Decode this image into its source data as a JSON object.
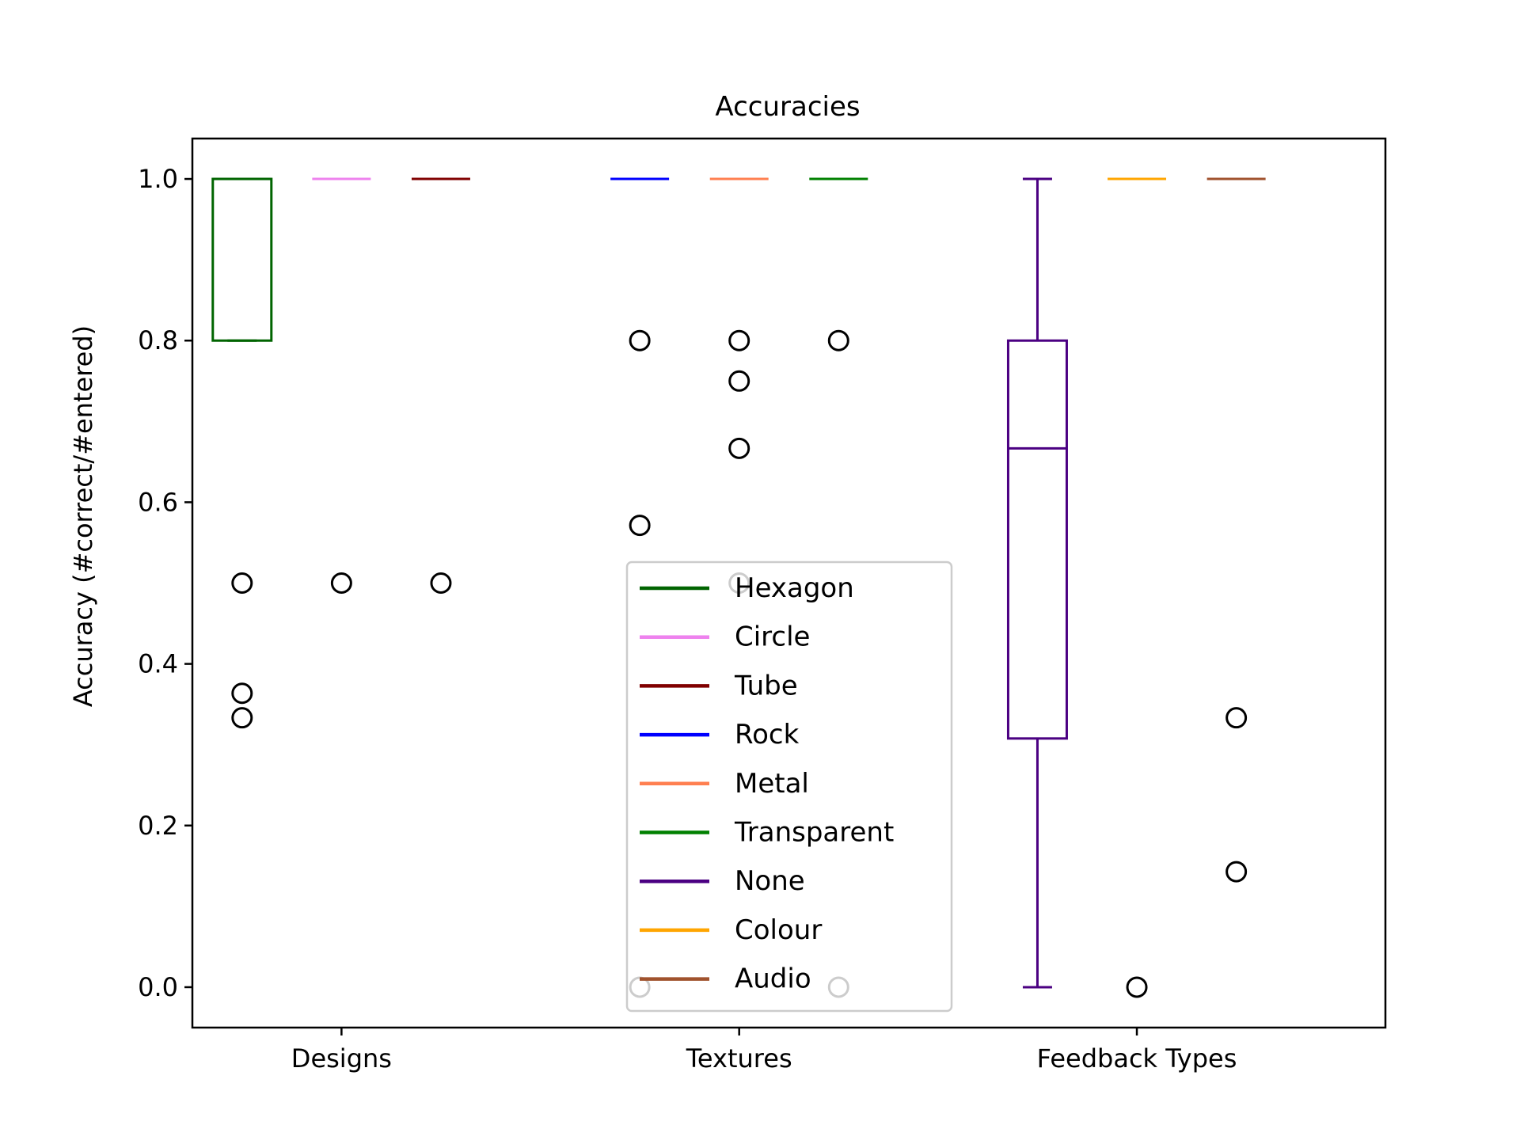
{
  "chart_data": {
    "type": "box",
    "title": "Accuracies",
    "xlabel": "",
    "ylabel": "Accuracy (#correct/#entered)",
    "ylim": [
      -0.05,
      1.05
    ],
    "yticks": [
      0.0,
      0.2,
      0.4,
      0.6,
      0.8,
      1.0
    ],
    "ytick_labels": [
      "0.0",
      "0.2",
      "0.4",
      "0.6",
      "0.8",
      "1.0"
    ],
    "groups": [
      "Designs",
      "Textures",
      "Feedback Types"
    ],
    "grid": false,
    "legend_position": "bottom-center",
    "series": [
      {
        "name": "Hexagon",
        "group": "Designs",
        "color": "#006400",
        "q1": 0.8,
        "median": 1.0,
        "q3": 1.0,
        "whisker_low": 0.8,
        "whisker_high": 1.0,
        "outliers": [
          0.5,
          0.3636,
          0.3333
        ]
      },
      {
        "name": "Circle",
        "group": "Designs",
        "color": "#ee82ee",
        "q1": 1.0,
        "median": 1.0,
        "q3": 1.0,
        "whisker_low": 1.0,
        "whisker_high": 1.0,
        "outliers": [
          0.5
        ]
      },
      {
        "name": "Tube",
        "group": "Designs",
        "color": "#800000",
        "q1": 1.0,
        "median": 1.0,
        "q3": 1.0,
        "whisker_low": 1.0,
        "whisker_high": 1.0,
        "outliers": [
          0.5
        ]
      },
      {
        "name": "Rock",
        "group": "Textures",
        "color": "#0000ff",
        "q1": 1.0,
        "median": 1.0,
        "q3": 1.0,
        "whisker_low": 1.0,
        "whisker_high": 1.0,
        "outliers": [
          0.8,
          0.5714,
          0.0
        ]
      },
      {
        "name": "Metal",
        "group": "Textures",
        "color": "#ff7f50",
        "q1": 1.0,
        "median": 1.0,
        "q3": 1.0,
        "whisker_low": 1.0,
        "whisker_high": 1.0,
        "outliers": [
          0.8,
          0.75,
          0.6667,
          0.5
        ]
      },
      {
        "name": "Transparent",
        "group": "Textures",
        "color": "#008000",
        "q1": 1.0,
        "median": 1.0,
        "q3": 1.0,
        "whisker_low": 1.0,
        "whisker_high": 1.0,
        "outliers": [
          0.8,
          0.0
        ]
      },
      {
        "name": "None",
        "group": "Feedback Types",
        "color": "#4b0082",
        "q1": 0.3077,
        "median": 0.6667,
        "q3": 0.8,
        "whisker_low": 0.0,
        "whisker_high": 1.0,
        "outliers": []
      },
      {
        "name": "Colour",
        "group": "Feedback Types",
        "color": "#ffa500",
        "q1": 1.0,
        "median": 1.0,
        "q3": 1.0,
        "whisker_low": 1.0,
        "whisker_high": 1.0,
        "outliers": [
          0.0
        ]
      },
      {
        "name": "Audio",
        "group": "Feedback Types",
        "color": "#a0522d",
        "q1": 1.0,
        "median": 1.0,
        "q3": 1.0,
        "whisker_low": 1.0,
        "whisker_high": 1.0,
        "outliers": [
          0.3333,
          0.1429
        ]
      }
    ]
  }
}
